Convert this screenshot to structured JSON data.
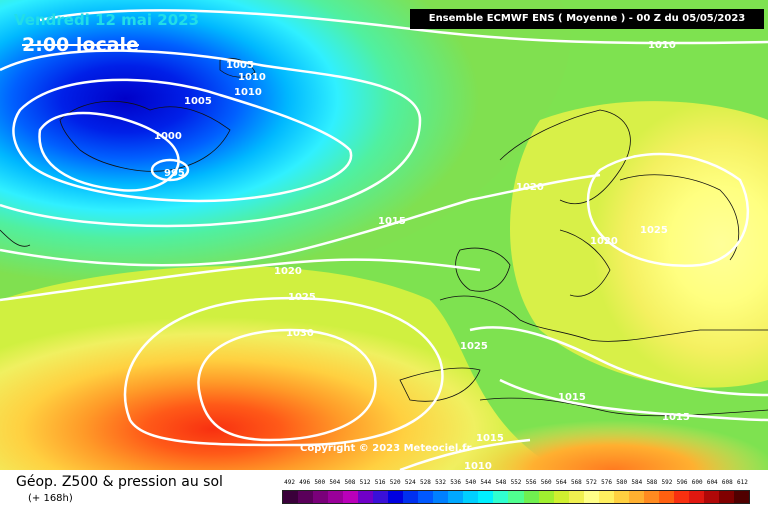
{
  "header": {
    "date": "Vendredi 12 mai 2023",
    "time": "2:00 locale",
    "model": "Ensemble ECMWF ENS  ( Moyenne )  -  00 Z du 05/05/2023"
  },
  "isobars": [
    {
      "label": "995"
    },
    {
      "label": "1000"
    },
    {
      "label": "1005"
    },
    {
      "label": "1005"
    },
    {
      "label": "1010"
    },
    {
      "label": "1010"
    },
    {
      "label": "1010"
    },
    {
      "label": "1010"
    },
    {
      "label": "1015"
    },
    {
      "label": "1015"
    },
    {
      "label": "1015"
    },
    {
      "label": "1015"
    },
    {
      "label": "1020"
    },
    {
      "label": "1020"
    },
    {
      "label": "1020"
    },
    {
      "label": "1025"
    },
    {
      "label": "1025"
    },
    {
      "label": "1025"
    },
    {
      "label": "1030"
    }
  ],
  "copyright": "Copyright © 2023 Meteociel.fr",
  "footer": {
    "title": "Géop. Z500 & pression au sol",
    "subtitle": "(+ 168h)"
  },
  "scale": {
    "labels": [
      "492",
      "496",
      "500",
      "504",
      "508",
      "512",
      "516",
      "520",
      "524",
      "528",
      "532",
      "536",
      "540",
      "544",
      "548",
      "552",
      "556",
      "560",
      "564",
      "568",
      "572",
      "576",
      "580",
      "584",
      "588",
      "592",
      "596",
      "600",
      "604",
      "608",
      "612"
    ],
    "colors": [
      "#3a003a",
      "#5a005a",
      "#7a007a",
      "#9a009a",
      "#ba00ba",
      "#7000c8",
      "#3a10d8",
      "#0000e0",
      "#0030f0",
      "#0058ff",
      "#0080ff",
      "#00a8ff",
      "#00d0ff",
      "#00f0ff",
      "#30ffd0",
      "#50ff90",
      "#70f050",
      "#a0f030",
      "#d0f030",
      "#f0f050",
      "#ffff88",
      "#fff060",
      "#ffd040",
      "#ffb030",
      "#ff8a20",
      "#ff6010",
      "#f83010",
      "#e01810",
      "#b00808",
      "#800000",
      "#500000"
    ]
  }
}
